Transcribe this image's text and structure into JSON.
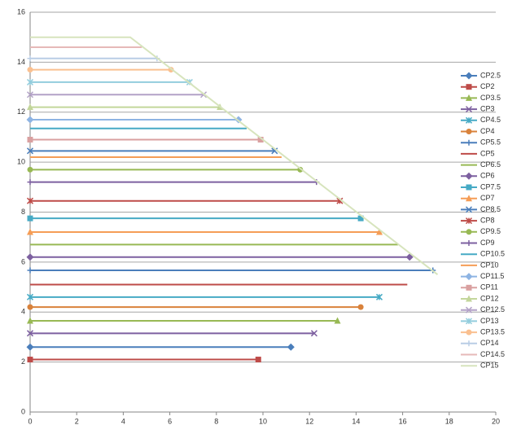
{
  "chart_data": {
    "type": "line",
    "xlim": [
      0,
      20
    ],
    "xticks": [
      0,
      2,
      4,
      6,
      8,
      10,
      12,
      14,
      16,
      18,
      20
    ],
    "ylim": [
      0,
      16
    ],
    "yticks": [
      0,
      2,
      4,
      6,
      8,
      10,
      12,
      14,
      16
    ],
    "grid": true,
    "legend": "right",
    "series": [
      {
        "name": "CP2.5",
        "color": "#4a7ebb",
        "marker": "diamond",
        "x": [
          0,
          11.2
        ],
        "values": [
          2.6,
          2.6
        ]
      },
      {
        "name": "CP2",
        "color": "#be4b48",
        "marker": "square",
        "x": [
          0,
          9.8
        ],
        "values": [
          2.1,
          2.1
        ]
      },
      {
        "name": "CP3.5",
        "color": "#98b954",
        "marker": "triangle",
        "x": [
          0,
          13.2
        ],
        "values": [
          3.65,
          3.65
        ]
      },
      {
        "name": "CP3",
        "color": "#7d60a0",
        "marker": "x",
        "x": [
          0,
          12.2
        ],
        "values": [
          3.15,
          3.15
        ]
      },
      {
        "name": "CP4.5",
        "color": "#46aac5",
        "marker": "star",
        "x": [
          0,
          15.0
        ],
        "values": [
          4.6,
          4.6
        ]
      },
      {
        "name": "CP4",
        "color": "#d9823b",
        "marker": "circle",
        "x": [
          0,
          14.2
        ],
        "values": [
          4.2,
          4.2
        ]
      },
      {
        "name": "CP5.5",
        "color": "#4a7ebb",
        "marker": "plus",
        "x": [
          0,
          17.3
        ],
        "values": [
          5.67,
          5.67
        ]
      },
      {
        "name": "CP5",
        "color": "#be4b48",
        "marker": "none",
        "x": [
          0,
          16.2
        ],
        "values": [
          5.1,
          5.1
        ]
      },
      {
        "name": "CP6.5",
        "color": "#98b954",
        "marker": "none",
        "x": [
          0,
          15.8
        ],
        "values": [
          6.7,
          6.7
        ]
      },
      {
        "name": "CP6",
        "color": "#7d60a0",
        "marker": "diamond",
        "x": [
          0,
          16.3
        ],
        "values": [
          6.2,
          6.2
        ]
      },
      {
        "name": "CP7.5",
        "color": "#46aac5",
        "marker": "square",
        "x": [
          0,
          14.2
        ],
        "values": [
          7.75,
          7.75
        ]
      },
      {
        "name": "CP7",
        "color": "#f59d56",
        "marker": "triangle",
        "x": [
          0,
          15.0
        ],
        "values": [
          7.2,
          7.2
        ]
      },
      {
        "name": "CP8.5",
        "color": "#4a7ebb",
        "marker": "x",
        "x": [
          0,
          10.5
        ],
        "values": [
          10.45,
          10.45
        ]
      },
      {
        "name": "CP8",
        "color": "#be4b48",
        "marker": "star",
        "x": [
          0,
          13.3
        ],
        "values": [
          8.45,
          8.45
        ]
      },
      {
        "name": "CP9.5",
        "color": "#98b954",
        "marker": "circle",
        "x": [
          0,
          11.6
        ],
        "values": [
          9.7,
          9.7
        ]
      },
      {
        "name": "CP9",
        "color": "#7d60a0",
        "marker": "plus",
        "x": [
          0,
          12.3
        ],
        "values": [
          9.2,
          9.2
        ]
      },
      {
        "name": "CP10.5",
        "color": "#46aac5",
        "marker": "none",
        "x": [
          0,
          9.3
        ],
        "values": [
          11.35,
          11.35
        ]
      },
      {
        "name": "CP10",
        "color": "#f59d56",
        "marker": "none",
        "x": [
          0,
          10.8
        ],
        "values": [
          10.2,
          10.2
        ]
      },
      {
        "name": "CP11.5",
        "color": "#8eb4e3",
        "marker": "diamond",
        "x": [
          0,
          8.95
        ],
        "values": [
          11.7,
          11.7
        ]
      },
      {
        "name": "CP11",
        "color": "#d9a0a0",
        "marker": "square",
        "x": [
          0,
          9.9
        ],
        "values": [
          10.9,
          10.9
        ]
      },
      {
        "name": "CP12",
        "color": "#c3d69b",
        "marker": "triangle",
        "x": [
          0,
          8.15
        ],
        "values": [
          12.2,
          12.2
        ]
      },
      {
        "name": "CP12.5",
        "color": "#b3a2c7",
        "marker": "x",
        "x": [
          0,
          7.45
        ],
        "values": [
          12.7,
          12.7
        ]
      },
      {
        "name": "CP13",
        "color": "#93cddd",
        "marker": "star",
        "x": [
          0,
          6.85
        ],
        "values": [
          13.2,
          13.2
        ]
      },
      {
        "name": "CP13.5",
        "color": "#fac090",
        "marker": "circle",
        "x": [
          0,
          6.05
        ],
        "values": [
          13.7,
          13.7
        ]
      },
      {
        "name": "CP14",
        "color": "#b9cde5",
        "marker": "plus",
        "x": [
          0,
          5.45
        ],
        "values": [
          14.15,
          14.15
        ]
      },
      {
        "name": "CP14.5",
        "color": "#e6b9b8",
        "marker": "none",
        "x": [
          0,
          4.8
        ],
        "values": [
          14.6,
          14.6
        ]
      },
      {
        "name": "CP15",
        "color": "#d7e4bd",
        "marker": "none",
        "x": [
          0,
          4.3,
          17.5
        ],
        "values": [
          15.0,
          15.0,
          5.5
        ]
      }
    ]
  }
}
